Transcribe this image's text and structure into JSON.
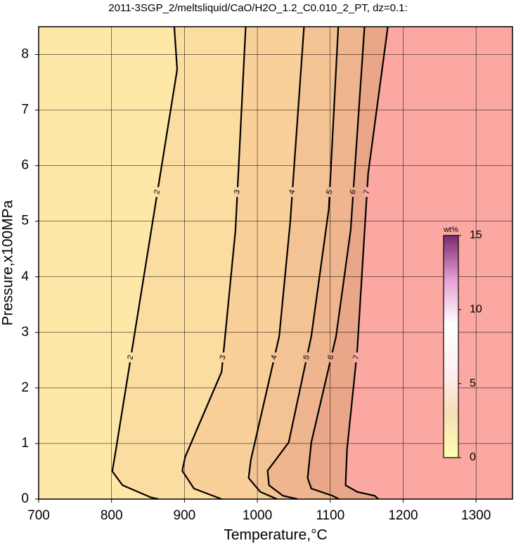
{
  "chart_data": {
    "type": "contour",
    "title": "2011-3SGP_2/meltsliquid/CaO/H2O_1.2_C0.010_2_PT, dz=0.1:",
    "x_label": "Temperature,°C",
    "y_label": "Pressure,x100MPa",
    "xlim": [
      700,
      1350
    ],
    "ylim": [
      0,
      8.5
    ],
    "xticks": [
      700,
      800,
      900,
      1000,
      1100,
      1200,
      1300
    ],
    "yticks": [
      0,
      1,
      2,
      3,
      4,
      5,
      6,
      7,
      8
    ],
    "grid": true,
    "background_color": "#fee8a8",
    "contours": [
      {
        "level": 2,
        "fill": "#fcdda1",
        "x": [
          886,
          890,
          806,
          801,
          815,
          854,
          864
        ],
        "y": [
          8.5,
          7.73,
          0.89,
          0.5,
          0.25,
          0.03,
          0
        ]
      },
      {
        "level": 3,
        "fill": "#f9d09a",
        "x": [
          984,
          970,
          951,
          901,
          897,
          913,
          951
        ],
        "y": [
          8.5,
          4.84,
          2.29,
          0.76,
          0.51,
          0.19,
          0
        ]
      },
      {
        "level": 4,
        "fill": "#f4c394",
        "x": [
          1064,
          1045,
          1030,
          991,
          988,
          1004,
          1027
        ],
        "y": [
          8.5,
          4.97,
          2.93,
          0.7,
          0.38,
          0.13,
          0
        ]
      },
      {
        "level": 5,
        "fill": "#efb58e",
        "x": [
          1111,
          1098,
          1074,
          1043,
          1014,
          1016,
          1035,
          1055
        ],
        "y": [
          8.5,
          5.22,
          2.93,
          1.02,
          0.51,
          0.25,
          0.06,
          0
        ]
      },
      {
        "level": 6,
        "fill": "#e9a689",
        "x": [
          1147,
          1128,
          1108,
          1074,
          1069,
          1074,
          1103,
          1112
        ],
        "y": [
          8.5,
          4.84,
          2.93,
          1.02,
          0.38,
          0.19,
          0.06,
          0
        ]
      },
      {
        "level": 7,
        "fill": "#fba8a2",
        "x": [
          1179,
          1152,
          1137,
          1123,
          1121,
          1137,
          1161,
          1166
        ],
        "y": [
          8.5,
          5.86,
          2.67,
          0.89,
          0.25,
          0.13,
          0.06,
          0
        ]
      }
    ],
    "colorbar": {
      "label": "wt%",
      "lim": [
        0,
        15
      ],
      "ticks": [
        0,
        5,
        10,
        15
      ],
      "colors": [
        "#ffffb0",
        "#f7dcb8",
        "#fff0f4",
        "#ffffff",
        "#e6a0d4",
        "#7a2a6e"
      ]
    }
  }
}
